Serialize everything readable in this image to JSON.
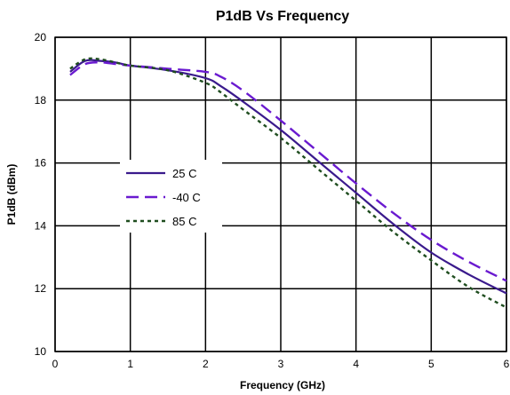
{
  "chart_data": {
    "type": "line",
    "title": "P1dB Vs Frequency",
    "xlabel": "Frequency (GHz)",
    "ylabel": "P1dB (dBm)",
    "xlim": [
      0,
      6
    ],
    "ylim": [
      10,
      20
    ],
    "xticks": [
      0,
      1,
      2,
      3,
      4,
      5,
      6
    ],
    "yticks": [
      10,
      12,
      14,
      16,
      18,
      20
    ],
    "grid": true,
    "legend_position": "left-center",
    "series": [
      {
        "name": "25 C",
        "color": "#3a1a8c",
        "style": "solid",
        "x": [
          0.2,
          0.4,
          0.6,
          0.8,
          1.0,
          1.5,
          2.0,
          2.2,
          2.5,
          3.0,
          3.5,
          4.0,
          4.5,
          5.0,
          5.5,
          6.0
        ],
        "y": [
          18.9,
          19.25,
          19.25,
          19.2,
          19.1,
          18.95,
          18.7,
          18.45,
          17.95,
          17.05,
          16.05,
          15.05,
          14.05,
          13.15,
          12.45,
          11.85
        ]
      },
      {
        "name": "-40 C",
        "color": "#6a1ad0",
        "style": "dashed",
        "x": [
          0.2,
          0.4,
          0.6,
          0.8,
          1.0,
          1.5,
          2.0,
          2.2,
          2.5,
          3.0,
          3.5,
          4.0,
          4.5,
          5.0,
          5.5,
          6.0
        ],
        "y": [
          18.8,
          19.15,
          19.2,
          19.15,
          19.1,
          19.0,
          18.9,
          18.75,
          18.3,
          17.35,
          16.35,
          15.35,
          14.4,
          13.55,
          12.85,
          12.25
        ]
      },
      {
        "name": "85 C",
        "color": "#1f4d1f",
        "style": "dotted",
        "x": [
          0.2,
          0.4,
          0.6,
          0.8,
          1.0,
          1.5,
          2.0,
          2.2,
          2.5,
          3.0,
          3.5,
          4.0,
          4.5,
          5.0,
          5.5,
          6.0
        ],
        "y": [
          19.0,
          19.3,
          19.3,
          19.2,
          19.1,
          18.95,
          18.55,
          18.25,
          17.7,
          16.8,
          15.8,
          14.8,
          13.8,
          12.9,
          12.05,
          11.4
        ]
      }
    ]
  }
}
